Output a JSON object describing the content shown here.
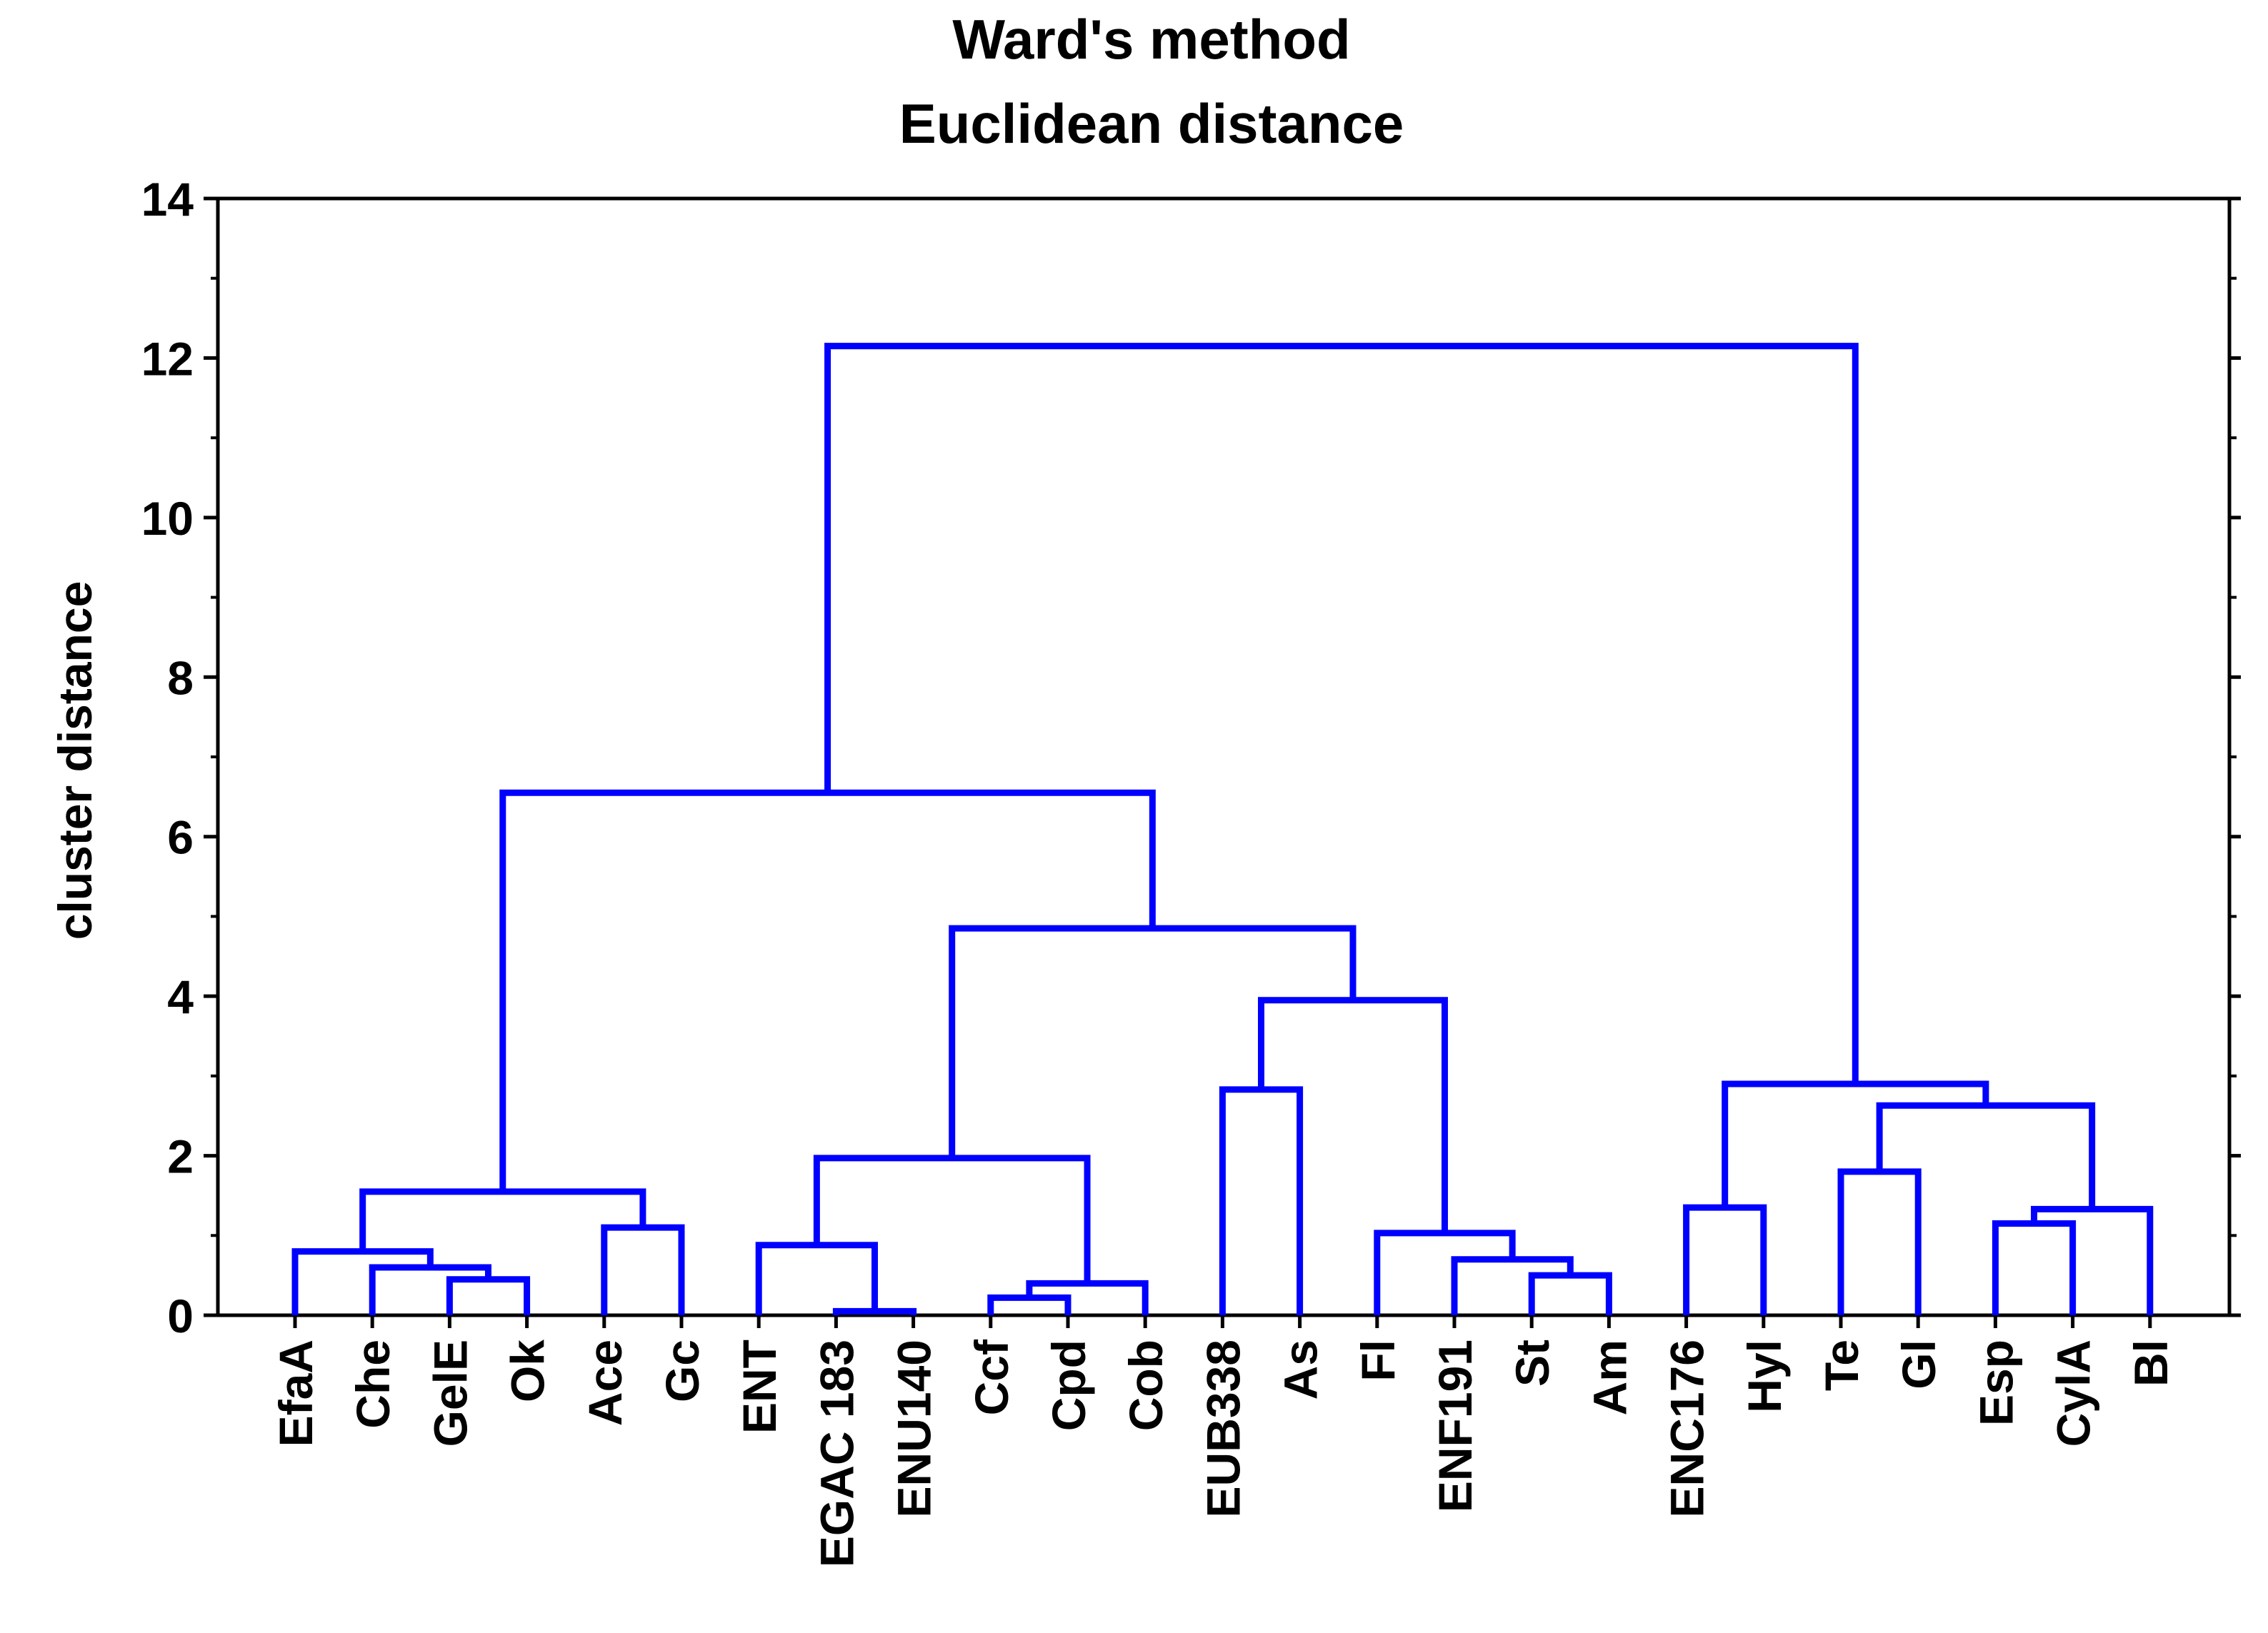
{
  "chart_data": {
    "type": "dendrogram",
    "title": "Ward's method",
    "subtitle": "Euclidean distance",
    "ylabel": "cluster distance",
    "xlabel": "",
    "ylim": [
      0,
      14
    ],
    "yticks": [
      "0",
      "2",
      "4",
      "6",
      "8",
      "10",
      "12",
      "14"
    ],
    "grid": false,
    "line_color": "#0000ff",
    "leaves": [
      "EfaA",
      "Che",
      "GelE",
      "Ok",
      "Ace",
      "Gc",
      "ENT",
      "EGAC 183",
      "ENU140",
      "Ccf",
      "Cpd",
      "Cob",
      "EUB338",
      "As",
      "Fl",
      "ENF191",
      "St",
      "Am",
      "ENC176",
      "Hyl",
      "Te",
      "Gl",
      "Esp",
      "CylA",
      "Bl"
    ],
    "merges": [
      {
        "left": "leaf:EGAC 183",
        "right": "leaf:ENU140",
        "height": 0.05
      },
      {
        "left": "leaf:Ccf",
        "right": "leaf:Cpd",
        "height": 0.22
      },
      {
        "left": "cluster:Ccf+Cpd",
        "right": "leaf:Cob",
        "height": 0.4
      },
      {
        "left": "leaf:GelE",
        "right": "leaf:Ok",
        "height": 0.45
      },
      {
        "left": "leaf:St",
        "right": "leaf:Am",
        "height": 0.5
      },
      {
        "left": "leaf:Che",
        "right": "cluster:GelE+Ok",
        "height": 0.6
      },
      {
        "left": "leaf:ENF191",
        "right": "cluster:St+Am",
        "height": 0.7
      },
      {
        "left": "leaf:EfaA",
        "right": "cluster:Che+GelE+Ok",
        "height": 0.8
      },
      {
        "left": "leaf:ENT",
        "right": "cluster:EGAC 183+ENU140",
        "height": 0.88
      },
      {
        "left": "leaf:Fl",
        "right": "cluster:ENF191+St+Am",
        "height": 1.03
      },
      {
        "left": "leaf:Ace",
        "right": "leaf:Gc",
        "height": 1.1
      },
      {
        "left": "leaf:Esp",
        "right": "leaf:CylA",
        "height": 1.15
      },
      {
        "left": "cluster:Esp+CylA",
        "right": "leaf:Bl",
        "height": 1.33
      },
      {
        "left": "leaf:ENC176",
        "right": "leaf:Hyl",
        "height": 1.35
      },
      {
        "left": "cluster:EfaA..Ok",
        "right": "cluster:Ace+Gc",
        "height": 1.55
      },
      {
        "left": "leaf:Te",
        "right": "leaf:Gl",
        "height": 1.8
      },
      {
        "left": "cluster:ENT..ENU140",
        "right": "cluster:Ccf..Cob",
        "height": 1.97
      },
      {
        "left": "cluster:Te+Gl",
        "right": "cluster:Esp+CylA+Bl",
        "height": 2.63
      },
      {
        "left": "leaf:EUB338",
        "right": "leaf:As",
        "height": 2.83
      },
      {
        "left": "cluster:ENC176+Hyl",
        "right": "cluster:Te..Bl",
        "height": 2.9
      },
      {
        "left": "cluster:EUB338+As",
        "right": "cluster:Fl..Am",
        "height": 3.95
      },
      {
        "left": "cluster:ENT..Cob",
        "right": "cluster:EUB338..Am",
        "height": 4.85
      },
      {
        "left": "cluster:EfaA..Gc",
        "right": "cluster:ENT..Am",
        "height": 6.55
      },
      {
        "left": "cluster:EfaA..Am",
        "right": "cluster:ENC176..Bl",
        "height": 12.15
      }
    ]
  }
}
